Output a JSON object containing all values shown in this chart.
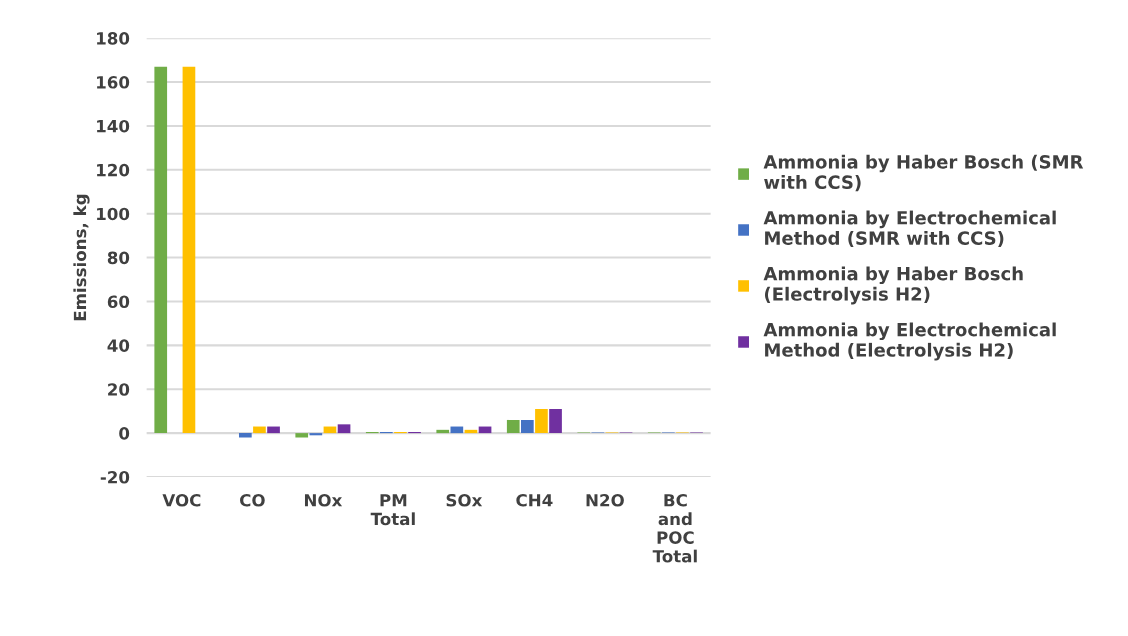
{
  "chart_data": {
    "type": "bar",
    "ylabel": "Emissions, kg",
    "categories": [
      "VOC",
      "CO",
      "NOx",
      "PM\nTotal",
      "SOx",
      "CH4",
      "N2O",
      "BC\nand\nPOC\nTotal"
    ],
    "series": [
      {
        "name": "Ammonia by Haber Bosch (SMR\nwith CCS)",
        "color": "#70ad47",
        "values": [
          167,
          0,
          -2,
          0.5,
          1.5,
          6,
          0.3,
          0.3
        ]
      },
      {
        "name": "Ammonia by Electrochemical\nMethod (SMR with CCS)",
        "color": "#4472c4",
        "values": [
          0,
          -2,
          -1,
          0.5,
          3,
          6,
          0.3,
          0.3
        ]
      },
      {
        "name": "Ammonia by Haber Bosch\n(Electrolysis H2)",
        "color": "#ffc000",
        "values": [
          167,
          3,
          3,
          0.5,
          1.5,
          11,
          0.3,
          0.3
        ]
      },
      {
        "name": "Ammonia by Electrochemical\nMethod (Electrolysis H2)",
        "color": "#7030a0",
        "values": [
          0,
          3,
          4,
          0.5,
          3,
          11,
          0.3,
          0.3
        ]
      }
    ],
    "ylim": [
      -20,
      180
    ],
    "yticks": [
      -20,
      0,
      20,
      40,
      60,
      80,
      100,
      120,
      140,
      160,
      180
    ],
    "grid": "y",
    "legend": "right"
  }
}
